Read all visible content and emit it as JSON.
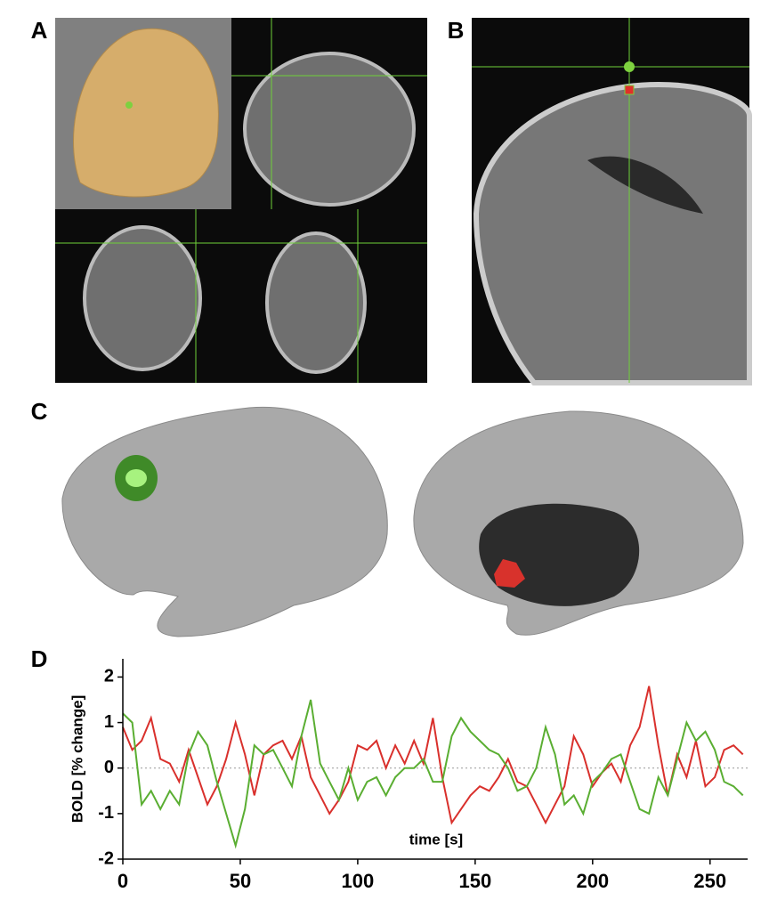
{
  "panel_labels": [
    "A",
    "B",
    "C",
    "D"
  ],
  "chart_data": {
    "type": "line",
    "ylabel": "BOLD [% change]",
    "xlabel": "time [s]",
    "xlim": [
      0,
      266
    ],
    "xticks": [
      0,
      50,
      100,
      150,
      200,
      250
    ],
    "ylim": [
      -2,
      2.4
    ],
    "yticks": [
      -2,
      -1,
      0,
      1,
      2
    ],
    "hline": 0,
    "x": [
      0,
      4,
      8,
      12,
      16,
      20,
      24,
      28,
      32,
      36,
      40,
      44,
      48,
      52,
      56,
      60,
      64,
      68,
      72,
      76,
      80,
      84,
      88,
      92,
      96,
      100,
      104,
      108,
      112,
      116,
      120,
      124,
      128,
      132,
      136,
      140,
      144,
      148,
      152,
      156,
      160,
      164,
      168,
      172,
      176,
      180,
      184,
      188,
      192,
      196,
      200,
      204,
      208,
      212,
      216,
      220,
      224,
      228,
      232,
      236,
      240,
      244,
      248,
      252,
      256,
      260,
      264
    ],
    "series": [
      {
        "color": "#d9302c",
        "values": [
          0.9,
          0.4,
          0.6,
          1.1,
          0.2,
          0.1,
          -0.3,
          0.4,
          -0.2,
          -0.8,
          -0.4,
          0.2,
          1.0,
          0.3,
          -0.6,
          0.3,
          0.5,
          0.6,
          0.2,
          0.7,
          -0.2,
          -0.6,
          -1.0,
          -0.7,
          -0.3,
          0.5,
          0.4,
          0.6,
          0.0,
          0.5,
          0.1,
          0.6,
          0.1,
          1.1,
          -0.2,
          -1.2,
          -0.9,
          -0.6,
          -0.4,
          -0.5,
          -0.2,
          0.2,
          -0.3,
          -0.4,
          -0.8,
          -1.2,
          -0.8,
          -0.4,
          0.7,
          0.3,
          -0.4,
          -0.1,
          0.1,
          -0.3,
          0.5,
          0.9,
          1.8,
          0.5,
          -0.6,
          0.3,
          -0.2,
          0.6,
          -0.4,
          -0.2,
          0.4,
          0.5,
          0.3
        ]
      },
      {
        "color": "#5aae32",
        "values": [
          1.2,
          1.0,
          -0.8,
          -0.5,
          -0.9,
          -0.5,
          -0.8,
          0.3,
          0.8,
          0.5,
          -0.3,
          -1.0,
          -1.7,
          -0.9,
          0.5,
          0.3,
          0.4,
          0.0,
          -0.4,
          0.7,
          1.5,
          0.1,
          -0.3,
          -0.7,
          0.0,
          -0.7,
          -0.3,
          -0.2,
          -0.6,
          -0.2,
          0.0,
          0.0,
          0.2,
          -0.3,
          -0.3,
          0.7,
          1.1,
          0.8,
          0.6,
          0.4,
          0.3,
          0.0,
          -0.5,
          -0.4,
          0.0,
          0.9,
          0.3,
          -0.8,
          -0.6,
          -1.0,
          -0.3,
          -0.1,
          0.2,
          0.3,
          -0.3,
          -0.9,
          -1.0,
          -0.2,
          -0.6,
          0.2,
          1.0,
          0.6,
          0.8,
          0.4,
          -0.3,
          -0.4,
          -0.6
        ]
      }
    ]
  }
}
